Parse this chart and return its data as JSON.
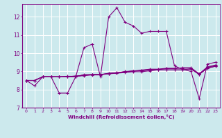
{
  "xlabel": "Windchill (Refroidissement éolien,°C)",
  "bg_color": "#cce9ed",
  "line_color": "#800080",
  "grid_color": "#ffffff",
  "ylim": [
    7.0,
    12.7
  ],
  "xlim": [
    -0.5,
    23.5
  ],
  "yticks": [
    7,
    8,
    9,
    10,
    11,
    12
  ],
  "xticks": [
    0,
    1,
    2,
    3,
    4,
    5,
    6,
    7,
    8,
    9,
    10,
    11,
    12,
    13,
    14,
    15,
    16,
    17,
    18,
    19,
    20,
    21,
    22,
    23
  ],
  "series": [
    [
      8.5,
      8.2,
      8.7,
      8.7,
      7.8,
      7.8,
      8.7,
      10.3,
      10.5,
      8.7,
      12.0,
      12.5,
      11.7,
      11.5,
      11.1,
      11.2,
      11.2,
      11.2,
      9.3,
      9.1,
      9.0,
      7.5,
      9.4,
      9.5
    ],
    [
      8.5,
      8.5,
      8.7,
      8.7,
      8.7,
      8.7,
      8.7,
      8.8,
      8.8,
      8.8,
      8.9,
      8.9,
      9.0,
      9.0,
      9.05,
      9.1,
      9.1,
      9.15,
      9.15,
      9.2,
      9.2,
      8.85,
      9.25,
      9.35
    ],
    [
      8.5,
      8.5,
      8.7,
      8.7,
      8.7,
      8.7,
      8.7,
      8.82,
      8.82,
      8.82,
      8.88,
      8.92,
      8.97,
      9.02,
      9.07,
      9.12,
      9.12,
      9.17,
      9.17,
      9.17,
      9.17,
      8.87,
      9.22,
      9.32
    ],
    [
      8.5,
      8.5,
      8.7,
      8.7,
      8.7,
      8.7,
      8.75,
      8.78,
      8.83,
      8.83,
      8.88,
      8.93,
      8.98,
      9.03,
      9.03,
      9.08,
      9.08,
      9.08,
      9.08,
      9.08,
      9.13,
      8.83,
      9.18,
      9.28
    ],
    [
      8.5,
      8.5,
      8.7,
      8.7,
      8.7,
      8.73,
      8.73,
      8.76,
      8.81,
      8.81,
      8.86,
      8.9,
      8.93,
      8.98,
      8.98,
      9.03,
      9.08,
      9.08,
      9.08,
      9.08,
      9.13,
      8.83,
      9.18,
      9.28
    ]
  ]
}
